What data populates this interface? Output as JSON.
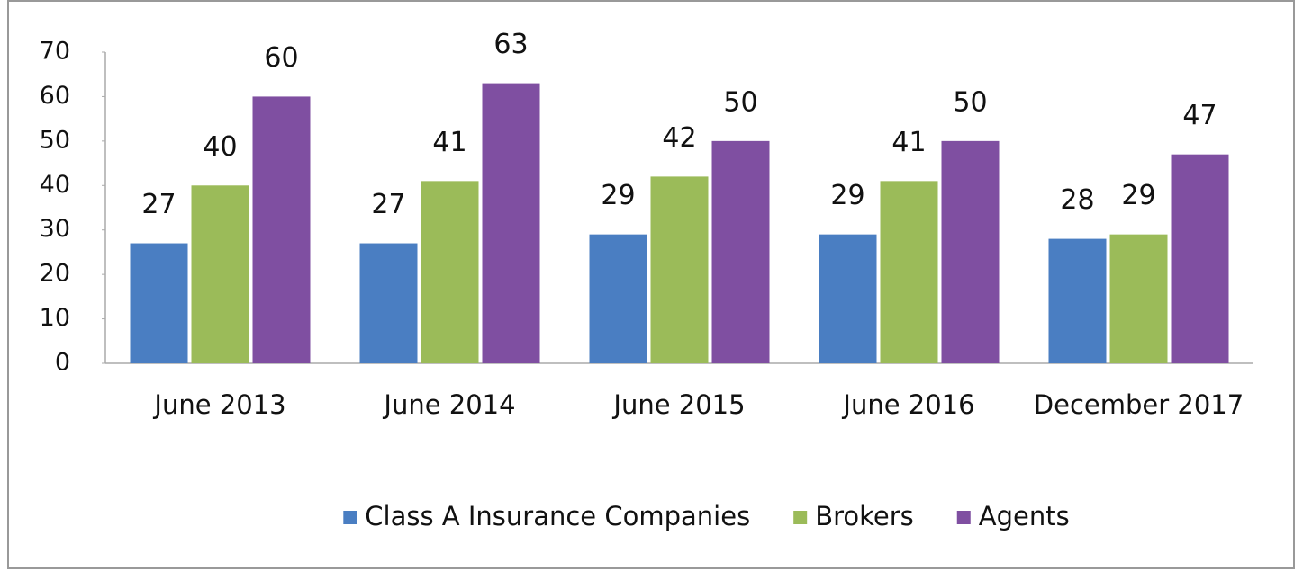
{
  "chart_data": {
    "type": "bar",
    "categories": [
      "June 2013",
      "June 2014",
      "June 2015",
      "June 2016",
      "December 2017"
    ],
    "series": [
      {
        "name": "Class A Insurance Companies",
        "color": "#4a7ec2",
        "values": [
          27,
          27,
          29,
          29,
          28
        ]
      },
      {
        "name": "Brokers",
        "color": "#9bbb59",
        "values": [
          40,
          41,
          42,
          41,
          29
        ]
      },
      {
        "name": "Agents",
        "color": "#7f4fa1",
        "values": [
          60,
          63,
          50,
          50,
          47
        ]
      }
    ],
    "ylim": [
      0,
      70
    ],
    "yticks": [
      0,
      10,
      20,
      30,
      40,
      50,
      60,
      70
    ],
    "grid": false,
    "legend": "bottom"
  }
}
